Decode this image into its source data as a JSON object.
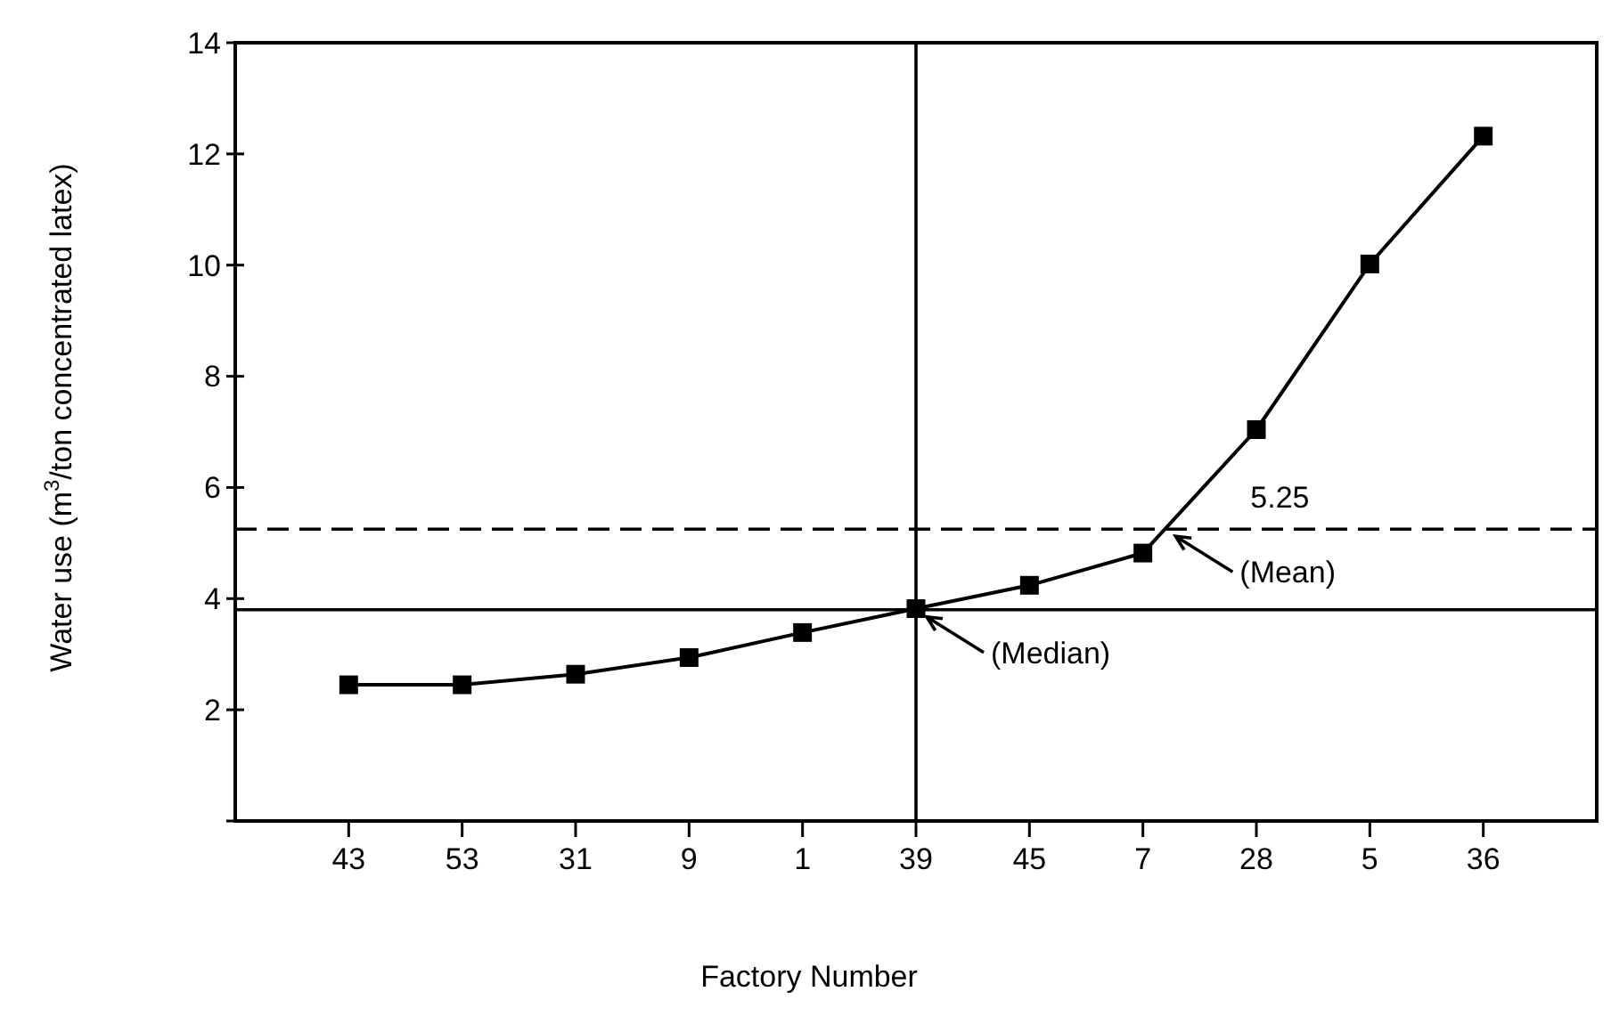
{
  "chart_data": {
    "type": "line",
    "xlabel": "Factory Number",
    "ylabel": "Water use (m$^{3}$/ton concentrated latex)",
    "categories": [
      "43",
      "53",
      "31",
      "9",
      "1",
      "39",
      "45",
      "7",
      "28",
      "5",
      "36"
    ],
    "series": [
      {
        "color": "#000000",
        "values": [
          2.45,
          2.45,
          2.64,
          2.94,
          3.39,
          3.82,
          4.24,
          4.82,
          7.04,
          10.02,
          12.32
        ]
      }
    ],
    "ylim": [
      0,
      14
    ],
    "yticks": [
      {
        "value": 0,
        "label": null
      },
      2,
      4,
      6,
      8,
      10,
      12,
      14
    ],
    "ref_lines": [
      {
        "axis": "y",
        "value": 3.8,
        "line_style": "solid",
        "color": "#000000"
      },
      {
        "axis": "y",
        "value": 5.25,
        "label": "5.25",
        "line_style": "dashed",
        "color": "#000000"
      },
      {
        "axis": "x",
        "value": "39",
        "line_style": "solid",
        "color": "#000000"
      }
    ],
    "annotations": [
      {
        "text": "(Median)",
        "x": "39",
        "y": 3.8
      },
      {
        "text": "(Mean)",
        "y": 5.25
      }
    ],
    "grid": false,
    "marker": "square",
    "line_style": "solid"
  }
}
